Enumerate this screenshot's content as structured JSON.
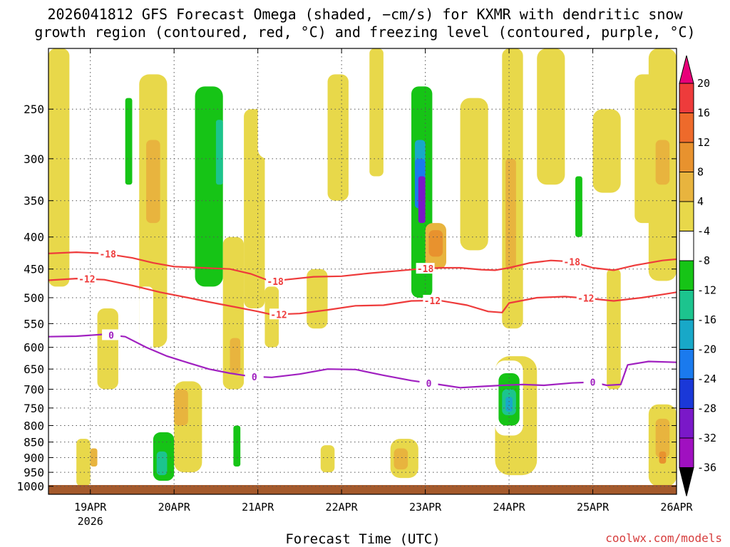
{
  "chart_data": {
    "type": "heatmap",
    "title_lines": [
      "2026041812 GFS Forecast Omega (shaded, −cm/s) for KXMR with dendritic snow",
      "growth region (contoured, red, °C) and freezing level (contoured, purple, °C)"
    ],
    "xlabel": "Forecast Time (UTC)",
    "ylabel": "",
    "credit": "coolwx.com/models",
    "y_axis": {
      "units": "hPa",
      "range": [
        200,
        1030
      ],
      "ticks": [
        250,
        300,
        350,
        400,
        450,
        500,
        550,
        600,
        650,
        700,
        750,
        800,
        850,
        900,
        950,
        1000
      ]
    },
    "x_axis": {
      "units": "hours since 2026041812",
      "range": [
        0,
        180
      ],
      "ticks": [
        {
          "label": "19APR",
          "sub": "2026",
          "hour": 12
        },
        {
          "label": "20APR",
          "sub": "",
          "hour": 36
        },
        {
          "label": "21APR",
          "sub": "",
          "hour": 60
        },
        {
          "label": "22APR",
          "sub": "",
          "hour": 84
        },
        {
          "label": "23APR",
          "sub": "",
          "hour": 108
        },
        {
          "label": "24APR",
          "sub": "",
          "hour": 132
        },
        {
          "label": "25APR",
          "sub": "",
          "hour": 156
        },
        {
          "label": "26APR",
          "sub": "",
          "hour": 180
        }
      ]
    },
    "colorbar": {
      "labels": [
        "20",
        "16",
        "12",
        "8",
        "4",
        "-4",
        "-8",
        "-12",
        "-16",
        "-20",
        "-24",
        "-28",
        "-32",
        "-36"
      ],
      "bins": [
        {
          "color": "#e8007a"
        },
        {
          "color": "#ee3b3b"
        },
        {
          "color": "#ee6a2b"
        },
        {
          "color": "#e8922e"
        },
        {
          "color": "#e8b43e"
        },
        {
          "color": "#e8d84a"
        },
        {
          "color": "#ffffff"
        },
        {
          "color": "#16c416"
        },
        {
          "color": "#1cc48e"
        },
        {
          "color": "#18a8c8"
        },
        {
          "color": "#1a7aee"
        },
        {
          "color": "#1a38d8"
        },
        {
          "color": "#7a18c8"
        },
        {
          "color": "#a010c0"
        },
        {
          "color": "#a0a0a0"
        },
        {
          "color": "#000000"
        }
      ]
    },
    "series": [
      {
        "name": "-18",
        "color": "#ee3b3b",
        "kind": "dgz_isotherm",
        "label_hours": [
          17,
          65,
          108,
          150
        ],
        "points": [
          [
            0,
            425
          ],
          [
            8,
            423
          ],
          [
            16,
            425
          ],
          [
            24,
            432
          ],
          [
            30,
            440
          ],
          [
            36,
            446
          ],
          [
            44,
            448
          ],
          [
            52,
            450
          ],
          [
            58,
            458
          ],
          [
            62,
            467
          ],
          [
            64,
            472
          ],
          [
            68,
            468
          ],
          [
            76,
            463
          ],
          [
            84,
            462
          ],
          [
            92,
            457
          ],
          [
            100,
            453
          ],
          [
            106,
            450
          ],
          [
            112,
            448
          ],
          [
            118,
            448
          ],
          [
            124,
            451
          ],
          [
            128,
            452
          ],
          [
            132,
            448
          ],
          [
            138,
            440
          ],
          [
            144,
            436
          ],
          [
            150,
            438
          ],
          [
            156,
            448
          ],
          [
            162,
            452
          ],
          [
            168,
            444
          ],
          [
            176,
            436
          ],
          [
            180,
            434
          ]
        ]
      },
      {
        "name": "-12",
        "color": "#ee3b3b",
        "kind": "dgz_isotherm",
        "label_hours": [
          11,
          66,
          110,
          154
        ],
        "points": [
          [
            0,
            469
          ],
          [
            8,
            466
          ],
          [
            16,
            468
          ],
          [
            24,
            478
          ],
          [
            32,
            490
          ],
          [
            40,
            500
          ],
          [
            46,
            508
          ],
          [
            54,
            518
          ],
          [
            60,
            526
          ],
          [
            64,
            532
          ],
          [
            72,
            530
          ],
          [
            80,
            523
          ],
          [
            88,
            515
          ],
          [
            96,
            514
          ],
          [
            104,
            506
          ],
          [
            112,
            505
          ],
          [
            120,
            514
          ],
          [
            126,
            526
          ],
          [
            130,
            528
          ],
          [
            132,
            510
          ],
          [
            140,
            500
          ],
          [
            148,
            498
          ],
          [
            156,
            502
          ],
          [
            162,
            506
          ],
          [
            170,
            500
          ],
          [
            176,
            494
          ],
          [
            180,
            490
          ]
        ]
      },
      {
        "name": "0",
        "color": "#a020c0",
        "kind": "freezing_level",
        "label_hours": [
          18,
          59,
          109,
          156
        ],
        "points": [
          [
            0,
            577
          ],
          [
            8,
            576
          ],
          [
            16,
            572
          ],
          [
            22,
            577
          ],
          [
            28,
            600
          ],
          [
            34,
            620
          ],
          [
            40,
            635
          ],
          [
            46,
            650
          ],
          [
            52,
            660
          ],
          [
            58,
            668
          ],
          [
            64,
            670
          ],
          [
            72,
            662
          ],
          [
            80,
            650
          ],
          [
            88,
            651
          ],
          [
            96,
            665
          ],
          [
            104,
            678
          ],
          [
            112,
            688
          ],
          [
            118,
            696
          ],
          [
            124,
            693
          ],
          [
            130,
            690
          ],
          [
            136,
            688
          ],
          [
            142,
            690
          ],
          [
            150,
            684
          ],
          [
            156,
            682
          ],
          [
            160,
            690
          ],
          [
            164,
            688
          ],
          [
            166,
            640
          ],
          [
            172,
            632
          ],
          [
            180,
            634
          ]
        ]
      }
    ],
    "shaded_regions": [
      {
        "category": "4",
        "t": [
          0,
          6
        ],
        "p": [
          200,
          480
        ]
      },
      {
        "category": "4",
        "t": [
          8,
          12
        ],
        "p": [
          840,
          1000
        ]
      },
      {
        "category": "8",
        "t": [
          12,
          14
        ],
        "p": [
          870,
          930
        ]
      },
      {
        "category": "4",
        "t": [
          14,
          20
        ],
        "p": [
          520,
          700
        ]
      },
      {
        "category": "-4",
        "t": [
          16,
          18
        ],
        "p": [
          200,
          370
        ]
      },
      {
        "category": "-4",
        "t": [
          22,
          26
        ],
        "p": [
          220,
          460
        ]
      },
      {
        "category": "-8",
        "t": [
          22,
          24
        ],
        "p": [
          240,
          330
        ]
      },
      {
        "category": "4",
        "t": [
          26,
          34
        ],
        "p": [
          220,
          600
        ]
      },
      {
        "category": "8",
        "t": [
          28,
          32
        ],
        "p": [
          280,
          380
        ]
      },
      {
        "category": "-4",
        "t": [
          26,
          30
        ],
        "p": [
          480,
          620
        ]
      },
      {
        "category": "-4",
        "t": [
          29,
          38
        ],
        "p": [
          800,
          990
        ]
      },
      {
        "category": "-8",
        "t": [
          30,
          36
        ],
        "p": [
          820,
          980
        ]
      },
      {
        "category": "-12",
        "t": [
          31,
          34
        ],
        "p": [
          880,
          960
        ]
      },
      {
        "category": "4",
        "t": [
          36,
          44
        ],
        "p": [
          680,
          950
        ]
      },
      {
        "category": "8",
        "t": [
          36,
          40
        ],
        "p": [
          700,
          800
        ]
      },
      {
        "category": "-4",
        "t": [
          38,
          52
        ],
        "p": [
          200,
          560
        ]
      },
      {
        "category": "-8",
        "t": [
          42,
          50
        ],
        "p": [
          230,
          480
        ]
      },
      {
        "category": "-12",
        "t": [
          48,
          50
        ],
        "p": [
          260,
          330
        ]
      },
      {
        "category": "4",
        "t": [
          50,
          56
        ],
        "p": [
          400,
          700
        ]
      },
      {
        "category": "8",
        "t": [
          52,
          55
        ],
        "p": [
          580,
          660
        ]
      },
      {
        "category": "-4",
        "t": [
          52,
          56
        ],
        "p": [
          760,
          960
        ]
      },
      {
        "category": "-8",
        "t": [
          53,
          55
        ],
        "p": [
          800,
          930
        ]
      },
      {
        "category": "4",
        "t": [
          56,
          62
        ],
        "p": [
          250,
          520
        ]
      },
      {
        "category": "-4",
        "t": [
          60,
          68
        ],
        "p": [
          200,
          300
        ]
      },
      {
        "category": "4",
        "t": [
          62,
          66
        ],
        "p": [
          480,
          600
        ]
      },
      {
        "category": "4",
        "t": [
          74,
          80
        ],
        "p": [
          450,
          560
        ]
      },
      {
        "category": "4",
        "t": [
          80,
          86
        ],
        "p": [
          220,
          350
        ]
      },
      {
        "category": "4",
        "t": [
          78,
          82
        ],
        "p": [
          860,
          950
        ]
      },
      {
        "category": "4",
        "t": [
          92,
          96
        ],
        "p": [
          200,
          320
        ]
      },
      {
        "category": "-4",
        "t": [
          102,
          110
        ],
        "p": [
          200,
          700
        ]
      },
      {
        "category": "-8",
        "t": [
          104,
          110
        ],
        "p": [
          230,
          500
        ]
      },
      {
        "category": "-16",
        "t": [
          105,
          108
        ],
        "p": [
          280,
          320
        ]
      },
      {
        "category": "-20",
        "t": [
          105,
          108
        ],
        "p": [
          300,
          360
        ]
      },
      {
        "category": "-28",
        "t": [
          106,
          108
        ],
        "p": [
          320,
          380
        ]
      },
      {
        "category": "8",
        "t": [
          108,
          114
        ],
        "p": [
          380,
          450
        ]
      },
      {
        "category": "12",
        "t": [
          109,
          113
        ],
        "p": [
          390,
          430
        ]
      },
      {
        "category": "4",
        "t": [
          98,
          106
        ],
        "p": [
          840,
          970
        ]
      },
      {
        "category": "8",
        "t": [
          99,
          103
        ],
        "p": [
          870,
          940
        ]
      },
      {
        "category": "4",
        "t": [
          118,
          126
        ],
        "p": [
          240,
          420
        ]
      },
      {
        "category": "4",
        "t": [
          130,
          136
        ],
        "p": [
          200,
          560
        ]
      },
      {
        "category": "8",
        "t": [
          131,
          134
        ],
        "p": [
          300,
          450
        ]
      },
      {
        "category": "4",
        "t": [
          128,
          140
        ],
        "p": [
          620,
          960
        ]
      },
      {
        "category": "-4",
        "t": [
          128,
          136
        ],
        "p": [
          630,
          830
        ]
      },
      {
        "category": "-8",
        "t": [
          129,
          135
        ],
        "p": [
          660,
          800
        ]
      },
      {
        "category": "-12",
        "t": [
          130,
          134
        ],
        "p": [
          700,
          770
        ]
      },
      {
        "category": "-16",
        "t": [
          131,
          133
        ],
        "p": [
          720,
          760
        ]
      },
      {
        "category": "4",
        "t": [
          140,
          148
        ],
        "p": [
          200,
          330
        ]
      },
      {
        "category": "-4",
        "t": [
          150,
          154
        ],
        "p": [
          300,
          430
        ]
      },
      {
        "category": "-8",
        "t": [
          151,
          153
        ],
        "p": [
          320,
          400
        ]
      },
      {
        "category": "4",
        "t": [
          156,
          164
        ],
        "p": [
          250,
          340
        ]
      },
      {
        "category": "4",
        "t": [
          160,
          164
        ],
        "p": [
          450,
          700
        ]
      },
      {
        "category": "4",
        "t": [
          168,
          174
        ],
        "p": [
          220,
          380
        ]
      },
      {
        "category": "4",
        "t": [
          172,
          180
        ],
        "p": [
          200,
          470
        ]
      },
      {
        "category": "8",
        "t": [
          174,
          178
        ],
        "p": [
          280,
          330
        ]
      },
      {
        "category": "4",
        "t": [
          172,
          180
        ],
        "p": [
          740,
          1000
        ]
      },
      {
        "category": "8",
        "t": [
          174,
          178
        ],
        "p": [
          780,
          900
        ]
      },
      {
        "category": "12",
        "t": [
          175,
          177
        ],
        "p": [
          880,
          920
        ]
      }
    ]
  }
}
